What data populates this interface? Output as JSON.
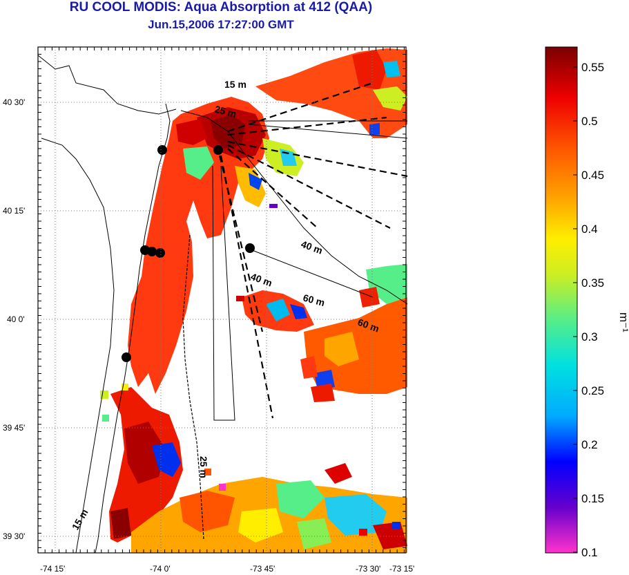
{
  "title": "RU COOL MODIS: Aqua Absorption at 412 (QAA)",
  "subtitle": "Jun.15,2006 17:27:00 GMT",
  "map": {
    "lat_ticks": [
      "40 30'",
      "40 15'",
      "40 0'",
      "39 45'",
      "39 30'"
    ],
    "lon_ticks": [
      "-74 15'",
      "-74 0'",
      "-73 45'",
      "-73 30'",
      "-73 15'"
    ],
    "isobaths": [
      "15 m",
      "25 m",
      "40 m",
      "40 m",
      "60 m",
      "60 m",
      "25 m",
      "15 m"
    ]
  },
  "colorbar": {
    "label": "m⁻¹",
    "ticks": [
      "0.55",
      "0.5",
      "0.45",
      "0.4",
      "0.35",
      "0.3",
      "0.25",
      "0.2",
      "0.15",
      "0.1"
    ],
    "min": 0.1,
    "max": 0.57,
    "colormap": [
      "#ff33cc",
      "#6600cc",
      "#0000ff",
      "#00aaff",
      "#00e0e0",
      "#55ee88",
      "#ccee22",
      "#ffee00",
      "#ffa500",
      "#ff5500",
      "#ee0000",
      "#7a0000"
    ]
  }
}
